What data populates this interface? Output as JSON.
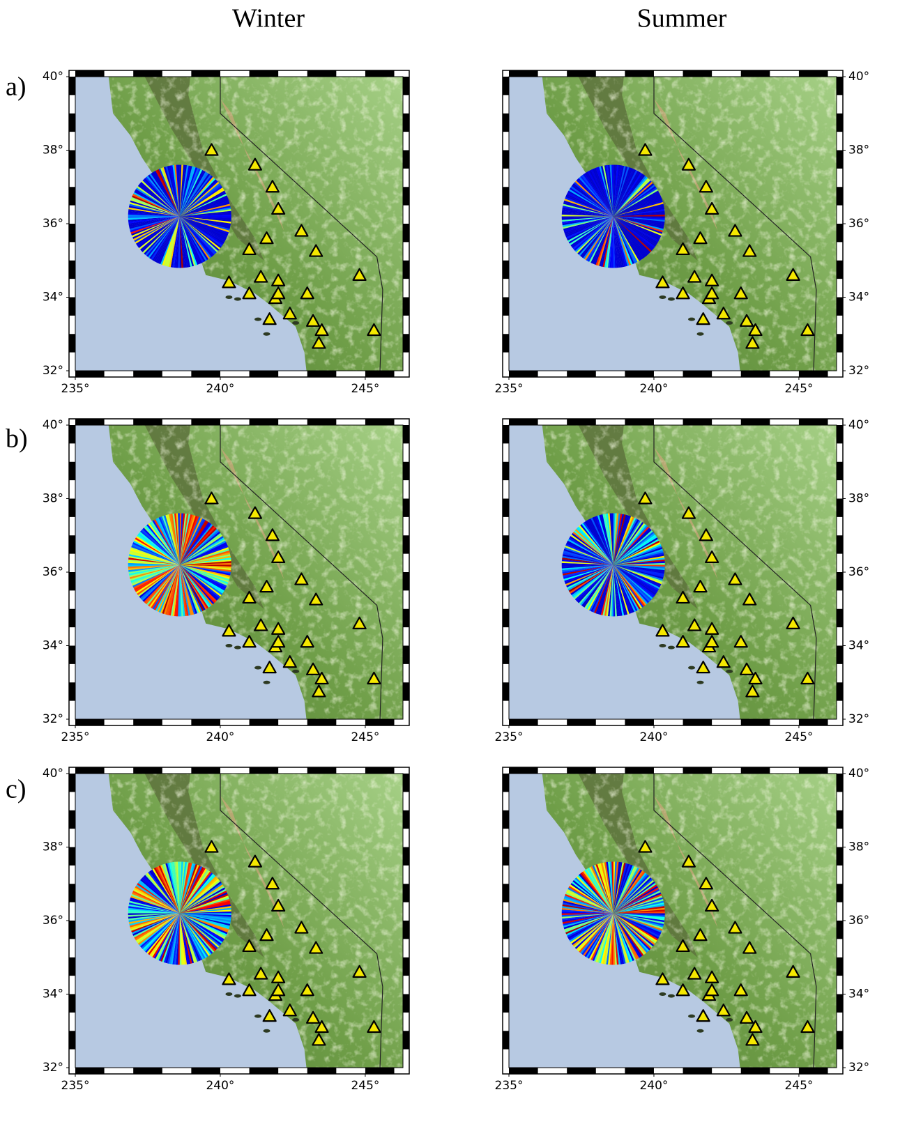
{
  "columns": [
    "Winter",
    "Summer"
  ],
  "rows": [
    "a)",
    "b)",
    "c)"
  ],
  "map": {
    "xlim": [
      235,
      246.3
    ],
    "ylim": [
      32,
      40
    ],
    "xticks": [
      {
        "value": 235,
        "label": "235°"
      },
      {
        "value": 240,
        "label": "240°"
      },
      {
        "value": 245,
        "label": "245°"
      }
    ],
    "yticks": [
      {
        "value": 32,
        "label": "32°"
      },
      {
        "value": 34,
        "label": "34°"
      },
      {
        "value": 36,
        "label": "36°"
      },
      {
        "value": 38,
        "label": "38°"
      },
      {
        "value": 40,
        "label": "40°"
      }
    ]
  },
  "stations": {
    "lon": [
      239.7,
      241.2,
      241.8,
      242.0,
      242.8,
      241.6,
      241.0,
      243.3,
      244.8,
      240.3,
      241.4,
      242.0,
      241.0,
      241.9,
      242.0,
      243.0,
      241.7,
      242.4,
      243.2,
      243.5,
      243.4,
      245.3
    ],
    "lat": [
      38.0,
      37.6,
      37.0,
      36.4,
      35.8,
      35.6,
      35.3,
      35.25,
      34.6,
      34.4,
      34.55,
      34.45,
      34.1,
      33.97,
      34.1,
      34.1,
      33.4,
      33.55,
      33.35,
      33.1,
      32.75,
      33.1
    ]
  }
}
